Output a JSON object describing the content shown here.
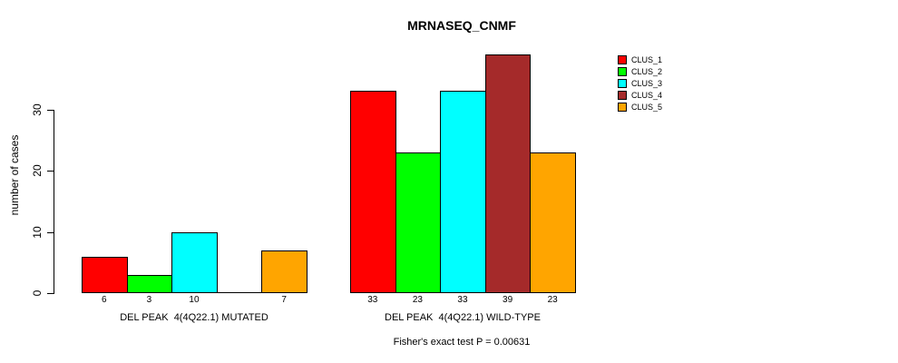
{
  "chart_data": {
    "type": "bar",
    "title": "MRNASEQ_CNMF",
    "ylabel": "number of cases",
    "footer": "Fisher's exact test P = 0.00631",
    "yticks": [
      0,
      10,
      20,
      30
    ],
    "ylim": [
      0,
      39
    ],
    "grid": false,
    "legend_position": "top-right",
    "categories": [
      "DEL PEAK  4(4Q22.1) MUTATED",
      "DEL PEAK  4(4Q22.1) WILD-TYPE"
    ],
    "series": [
      {
        "name": "CLUS_1",
        "color": "#ff0000",
        "values": [
          6,
          33
        ]
      },
      {
        "name": "CLUS_2",
        "color": "#00ff00",
        "values": [
          3,
          23
        ]
      },
      {
        "name": "CLUS_3",
        "color": "#00ffff",
        "values": [
          10,
          33
        ]
      },
      {
        "name": "CLUS_4",
        "color": "#a52a2a",
        "values": [
          0,
          39
        ]
      },
      {
        "name": "CLUS_5",
        "color": "#ffa500",
        "values": [
          7,
          23
        ]
      }
    ],
    "bar_labels": [
      [
        "6",
        "3",
        "10",
        "",
        "7"
      ],
      [
        "33",
        "23",
        "33",
        "39",
        "23"
      ]
    ],
    "colors": {
      "background": "#ffffff",
      "axis": "#000000",
      "text": "#000000"
    }
  }
}
